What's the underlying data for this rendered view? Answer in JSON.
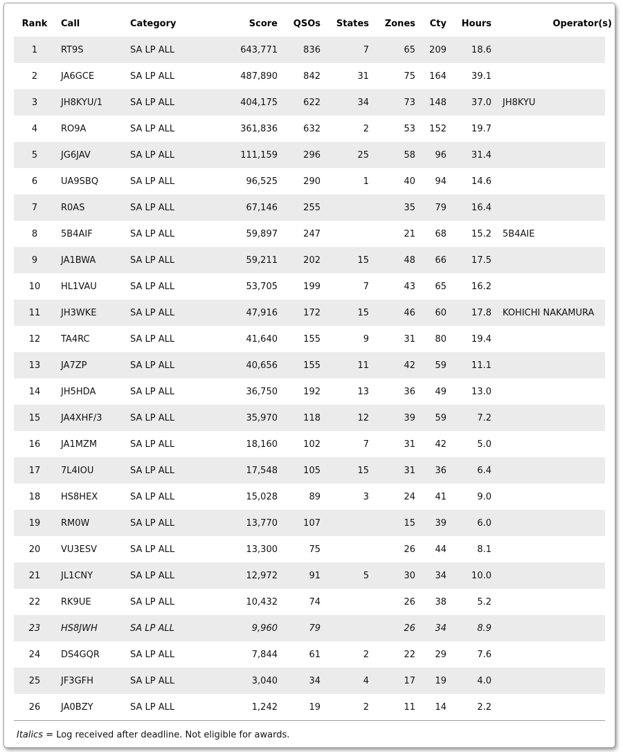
{
  "colors": {
    "row_stripe": "#ebebeb",
    "table_text": "#111111",
    "frame_border": "#a8a8a8"
  },
  "table": {
    "columns": [
      {
        "key": "rank",
        "label": "Rank",
        "align": "center",
        "header_align": "center"
      },
      {
        "key": "call",
        "label": "Call",
        "align": "left",
        "header_align": "left"
      },
      {
        "key": "category",
        "label": "Category",
        "align": "left",
        "header_align": "left"
      },
      {
        "key": "score",
        "label": "Score",
        "align": "right",
        "header_align": "right"
      },
      {
        "key": "qsos",
        "label": "QSOs",
        "align": "right",
        "header_align": "right"
      },
      {
        "key": "states",
        "label": "States",
        "align": "right",
        "header_align": "right"
      },
      {
        "key": "zones",
        "label": "Zones",
        "align": "right",
        "header_align": "right"
      },
      {
        "key": "cty",
        "label": "Cty",
        "align": "right",
        "header_align": "right"
      },
      {
        "key": "hours",
        "label": "Hours",
        "align": "right",
        "header_align": "right"
      },
      {
        "key": "operator",
        "label": "Operator(s)",
        "align": "left",
        "header_align": "right"
      }
    ],
    "rows": [
      {
        "rank": "1",
        "call": "RT9S",
        "category": "SA LP ALL",
        "score": "643,771",
        "qsos": "836",
        "states": "7",
        "zones": "65",
        "cty": "209",
        "hours": "18.6",
        "operator": "",
        "italic": false
      },
      {
        "rank": "2",
        "call": "JA6GCE",
        "category": "SA LP ALL",
        "score": "487,890",
        "qsos": "842",
        "states": "31",
        "zones": "75",
        "cty": "164",
        "hours": "39.1",
        "operator": "",
        "italic": false
      },
      {
        "rank": "3",
        "call": "JH8KYU/1",
        "category": "SA LP ALL",
        "score": "404,175",
        "qsos": "622",
        "states": "34",
        "zones": "73",
        "cty": "148",
        "hours": "37.0",
        "operator": "JH8KYU",
        "italic": false
      },
      {
        "rank": "4",
        "call": "RO9A",
        "category": "SA LP ALL",
        "score": "361,836",
        "qsos": "632",
        "states": "2",
        "zones": "53",
        "cty": "152",
        "hours": "19.7",
        "operator": "",
        "italic": false
      },
      {
        "rank": "5",
        "call": "JG6JAV",
        "category": "SA LP ALL",
        "score": "111,159",
        "qsos": "296",
        "states": "25",
        "zones": "58",
        "cty": "96",
        "hours": "31.4",
        "operator": "",
        "italic": false
      },
      {
        "rank": "6",
        "call": "UA9SBQ",
        "category": "SA LP ALL",
        "score": "96,525",
        "qsos": "290",
        "states": "1",
        "zones": "40",
        "cty": "94",
        "hours": "14.6",
        "operator": "",
        "italic": false
      },
      {
        "rank": "7",
        "call": "R0AS",
        "category": "SA LP ALL",
        "score": "67,146",
        "qsos": "255",
        "states": "",
        "zones": "35",
        "cty": "79",
        "hours": "16.4",
        "operator": "",
        "italic": false
      },
      {
        "rank": "8",
        "call": "5B4AIF",
        "category": "SA LP ALL",
        "score": "59,897",
        "qsos": "247",
        "states": "",
        "zones": "21",
        "cty": "68",
        "hours": "15.2",
        "operator": "5B4AIE",
        "italic": false
      },
      {
        "rank": "9",
        "call": "JA1BWA",
        "category": "SA LP ALL",
        "score": "59,211",
        "qsos": "202",
        "states": "15",
        "zones": "48",
        "cty": "66",
        "hours": "17.5",
        "operator": "",
        "italic": false
      },
      {
        "rank": "10",
        "call": "HL1VAU",
        "category": "SA LP ALL",
        "score": "53,705",
        "qsos": "199",
        "states": "7",
        "zones": "43",
        "cty": "65",
        "hours": "16.2",
        "operator": "",
        "italic": false
      },
      {
        "rank": "11",
        "call": "JH3WKE",
        "category": "SA LP ALL",
        "score": "47,916",
        "qsos": "172",
        "states": "15",
        "zones": "46",
        "cty": "60",
        "hours": "17.8",
        "operator": "KOHICHI NAKAMURA",
        "italic": false
      },
      {
        "rank": "12",
        "call": "TA4RC",
        "category": "SA LP ALL",
        "score": "41,640",
        "qsos": "155",
        "states": "9",
        "zones": "31",
        "cty": "80",
        "hours": "19.4",
        "operator": "",
        "italic": false
      },
      {
        "rank": "13",
        "call": "JA7ZP",
        "category": "SA LP ALL",
        "score": "40,656",
        "qsos": "155",
        "states": "11",
        "zones": "42",
        "cty": "59",
        "hours": "11.1",
        "operator": "",
        "italic": false
      },
      {
        "rank": "14",
        "call": "JH5HDA",
        "category": "SA LP ALL",
        "score": "36,750",
        "qsos": "192",
        "states": "13",
        "zones": "36",
        "cty": "49",
        "hours": "13.0",
        "operator": "",
        "italic": false
      },
      {
        "rank": "15",
        "call": "JA4XHF/3",
        "category": "SA LP ALL",
        "score": "35,970",
        "qsos": "118",
        "states": "12",
        "zones": "39",
        "cty": "59",
        "hours": "7.2",
        "operator": "",
        "italic": false
      },
      {
        "rank": "16",
        "call": "JA1MZM",
        "category": "SA LP ALL",
        "score": "18,160",
        "qsos": "102",
        "states": "7",
        "zones": "31",
        "cty": "42",
        "hours": "5.0",
        "operator": "",
        "italic": false
      },
      {
        "rank": "17",
        "call": "7L4IOU",
        "category": "SA LP ALL",
        "score": "17,548",
        "qsos": "105",
        "states": "15",
        "zones": "31",
        "cty": "36",
        "hours": "6.4",
        "operator": "",
        "italic": false
      },
      {
        "rank": "18",
        "call": "HS8HEX",
        "category": "SA LP ALL",
        "score": "15,028",
        "qsos": "89",
        "states": "3",
        "zones": "24",
        "cty": "41",
        "hours": "9.0",
        "operator": "",
        "italic": false
      },
      {
        "rank": "19",
        "call": "RM0W",
        "category": "SA LP ALL",
        "score": "13,770",
        "qsos": "107",
        "states": "",
        "zones": "15",
        "cty": "39",
        "hours": "6.0",
        "operator": "",
        "italic": false
      },
      {
        "rank": "20",
        "call": "VU3ESV",
        "category": "SA LP ALL",
        "score": "13,300",
        "qsos": "75",
        "states": "",
        "zones": "26",
        "cty": "44",
        "hours": "8.1",
        "operator": "",
        "italic": false
      },
      {
        "rank": "21",
        "call": "JL1CNY",
        "category": "SA LP ALL",
        "score": "12,972",
        "qsos": "91",
        "states": "5",
        "zones": "30",
        "cty": "34",
        "hours": "10.0",
        "operator": "",
        "italic": false
      },
      {
        "rank": "22",
        "call": "RK9UE",
        "category": "SA LP ALL",
        "score": "10,432",
        "qsos": "74",
        "states": "",
        "zones": "26",
        "cty": "38",
        "hours": "5.2",
        "operator": "",
        "italic": false
      },
      {
        "rank": "23",
        "call": "HS8JWH",
        "category": "SA LP ALL",
        "score": "9,960",
        "qsos": "79",
        "states": "",
        "zones": "26",
        "cty": "34",
        "hours": "8.9",
        "operator": "",
        "italic": true
      },
      {
        "rank": "24",
        "call": "DS4GQR",
        "category": "SA LP ALL",
        "score": "7,844",
        "qsos": "61",
        "states": "2",
        "zones": "22",
        "cty": "29",
        "hours": "7.6",
        "operator": "",
        "italic": false
      },
      {
        "rank": "25",
        "call": "JF3GFH",
        "category": "SA LP ALL",
        "score": "3,040",
        "qsos": "34",
        "states": "4",
        "zones": "17",
        "cty": "19",
        "hours": "4.0",
        "operator": "",
        "italic": false
      },
      {
        "rank": "26",
        "call": "JA0BZY",
        "category": "SA LP ALL",
        "score": "1,242",
        "qsos": "19",
        "states": "2",
        "zones": "11",
        "cty": "14",
        "hours": "2.2",
        "operator": "",
        "italic": false
      }
    ]
  },
  "footnote": {
    "italic_word": "Italics",
    "rest": " = Log received after deadline. Not eligible for awards."
  }
}
